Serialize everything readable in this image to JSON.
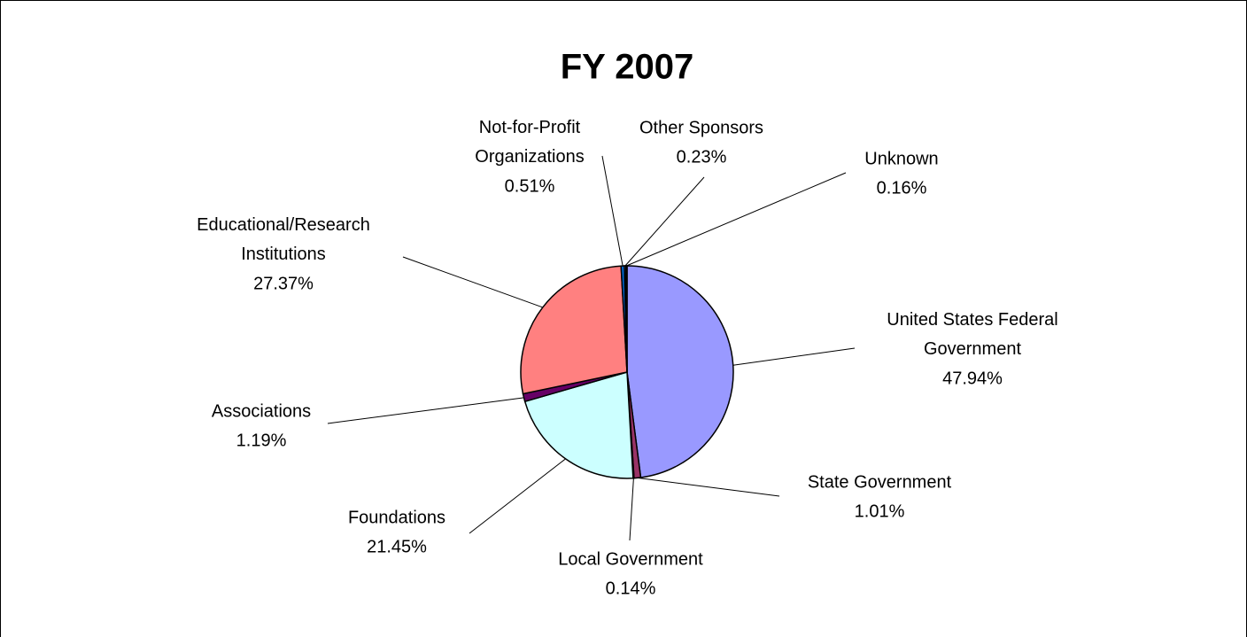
{
  "chart_data": {
    "type": "pie",
    "title": "FY 2007",
    "categories": [
      "United States Federal Government",
      "State Government",
      "Local Government",
      "Foundations",
      "Associations",
      "Educational/Research Institutions",
      "Not-for-Profit Organizations",
      "Other Sponsors",
      "Unknown"
    ],
    "values": [
      47.94,
      1.01,
      0.14,
      21.45,
      1.19,
      27.37,
      0.51,
      0.23,
      0.16
    ],
    "value_labels": [
      "47.94%",
      "1.01%",
      "0.14%",
      "21.45%",
      "1.19%",
      "27.37%",
      "0.51%",
      "0.23%",
      "0.16%"
    ],
    "colors": [
      "#9999ff",
      "#993366",
      "#ffffcc",
      "#ccffff",
      "#660066",
      "#ff8080",
      "#0066cc",
      "#ccccff",
      "#000080"
    ]
  }
}
